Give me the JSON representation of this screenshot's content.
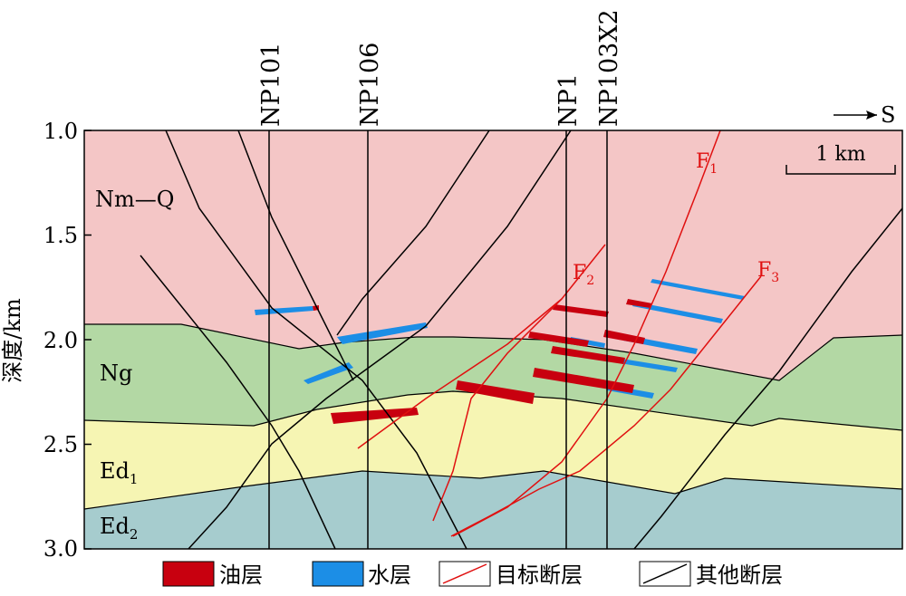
{
  "y_axis": {
    "label": "深度/km",
    "ticks": [
      "1.0",
      "1.5",
      "2.0",
      "2.5",
      "3.0"
    ]
  },
  "wells": [
    {
      "name": "NP101"
    },
    {
      "name": "NP106"
    },
    {
      "name": "NP1"
    },
    {
      "name": "NP103X2"
    }
  ],
  "direction": {
    "label": "S"
  },
  "scale_bar": {
    "label": "1 km"
  },
  "layers": [
    {
      "name": "Nm—Q",
      "sub": "",
      "color": "#f4c6c6"
    },
    {
      "name": "Ng",
      "sub": "",
      "color": "#b3d8a4"
    },
    {
      "name": "Ed",
      "sub": "1",
      "color": "#f6f5b3"
    },
    {
      "name": "Ed",
      "sub": "2",
      "color": "#a6ccce"
    }
  ],
  "faults_target": [
    {
      "name": "F",
      "sub": "1"
    },
    {
      "name": "F",
      "sub": "2"
    },
    {
      "name": "F",
      "sub": "3"
    }
  ],
  "legend": {
    "oil": {
      "label": "油层",
      "color": "#c8000f"
    },
    "water": {
      "label": "水层",
      "color": "#1c8ee6"
    },
    "target_fault": {
      "label": "目标断层",
      "color": "#e01010"
    },
    "other_fault": {
      "label": "其他断层",
      "color": "#000000"
    }
  }
}
